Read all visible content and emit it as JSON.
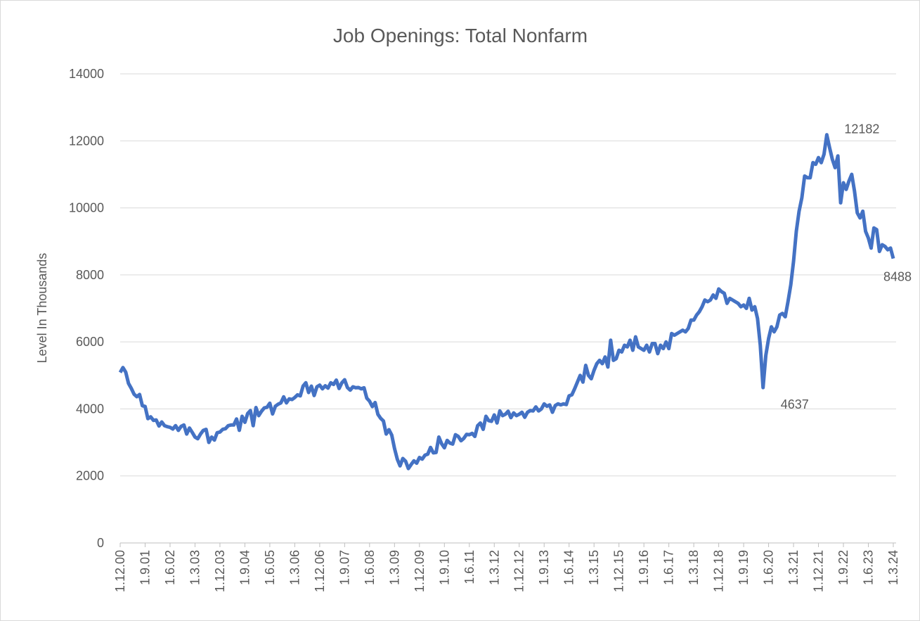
{
  "chart_data": {
    "type": "line",
    "title": "Job Openings: Total Nonfarm",
    "y_label": "Level In Thousands",
    "categories": [
      "1.12.00",
      null,
      null,
      null,
      null,
      null,
      null,
      null,
      null,
      "1.9.01",
      null,
      null,
      null,
      null,
      null,
      null,
      null,
      null,
      "1.6.02",
      null,
      null,
      null,
      null,
      null,
      null,
      null,
      null,
      "1.3.03",
      null,
      null,
      null,
      null,
      null,
      null,
      null,
      null,
      "1.12.03",
      null,
      null,
      null,
      null,
      null,
      null,
      null,
      null,
      "1.9.04",
      null,
      null,
      null,
      null,
      null,
      null,
      null,
      null,
      "1.6.05",
      null,
      null,
      null,
      null,
      null,
      null,
      null,
      null,
      "1.3.06",
      null,
      null,
      null,
      null,
      null,
      null,
      null,
      null,
      "1.12.06",
      null,
      null,
      null,
      null,
      null,
      null,
      null,
      null,
      "1.9.07",
      null,
      null,
      null,
      null,
      null,
      null,
      null,
      null,
      "1.6.08",
      null,
      null,
      null,
      null,
      null,
      null,
      null,
      null,
      "1.3.09",
      null,
      null,
      null,
      null,
      null,
      null,
      null,
      null,
      "1.12.09",
      null,
      null,
      null,
      null,
      null,
      null,
      null,
      null,
      "1.9.10",
      null,
      null,
      null,
      null,
      null,
      null,
      null,
      null,
      "1.6.11",
      null,
      null,
      null,
      null,
      null,
      null,
      null,
      null,
      "1.3.12",
      null,
      null,
      null,
      null,
      null,
      null,
      null,
      null,
      "1.12.12",
      null,
      null,
      null,
      null,
      null,
      null,
      null,
      null,
      "1.9.13",
      null,
      null,
      null,
      null,
      null,
      null,
      null,
      null,
      "1.6.14",
      null,
      null,
      null,
      null,
      null,
      null,
      null,
      null,
      "1.3.15",
      null,
      null,
      null,
      null,
      null,
      null,
      null,
      null,
      "1.12.15",
      null,
      null,
      null,
      null,
      null,
      null,
      null,
      null,
      "1.9.16",
      null,
      null,
      null,
      null,
      null,
      null,
      null,
      null,
      "1.6.17",
      null,
      null,
      null,
      null,
      null,
      null,
      null,
      null,
      "1.3.18",
      null,
      null,
      null,
      null,
      null,
      null,
      null,
      null,
      "1.12.18",
      null,
      null,
      null,
      null,
      null,
      null,
      null,
      null,
      "1.9.19",
      null,
      null,
      null,
      null,
      null,
      null,
      null,
      null,
      "1.6.20",
      null,
      null,
      null,
      null,
      null,
      null,
      null,
      null,
      "1.3.21",
      null,
      null,
      null,
      null,
      null,
      null,
      null,
      null,
      "1.12.21",
      null,
      null,
      null,
      null,
      null,
      null,
      null,
      null,
      "1.9.22",
      null,
      null,
      null,
      null,
      null,
      null,
      null,
      null,
      "1.6.23",
      null,
      null,
      null,
      null,
      null,
      null,
      null,
      null,
      "1.3.24"
    ],
    "values": [
      5088,
      5234,
      5097,
      4762,
      4615,
      4440,
      4364,
      4431,
      4095,
      4074,
      3709,
      3763,
      3658,
      3670,
      3490,
      3610,
      3500,
      3470,
      3450,
      3400,
      3500,
      3360,
      3480,
      3520,
      3250,
      3430,
      3300,
      3160,
      3110,
      3250,
      3360,
      3390,
      3000,
      3160,
      3070,
      3290,
      3310,
      3390,
      3410,
      3500,
      3520,
      3520,
      3700,
      3360,
      3780,
      3600,
      3860,
      3950,
      3500,
      4040,
      3800,
      3930,
      4030,
      4050,
      4170,
      3850,
      4080,
      4140,
      4180,
      4360,
      4180,
      4300,
      4280,
      4340,
      4420,
      4390,
      4680,
      4780,
      4490,
      4680,
      4400,
      4660,
      4710,
      4600,
      4690,
      4620,
      4780,
      4730,
      4860,
      4610,
      4780,
      4870,
      4640,
      4560,
      4660,
      4630,
      4640,
      4600,
      4630,
      4320,
      4230,
      4070,
      4190,
      3840,
      3720,
      3640,
      3250,
      3380,
      3220,
      2820,
      2500,
      2300,
      2520,
      2440,
      2220,
      2340,
      2450,
      2380,
      2550,
      2500,
      2620,
      2650,
      2850,
      2690,
      2700,
      3160,
      2960,
      2840,
      3060,
      2980,
      2950,
      3230,
      3180,
      3050,
      3120,
      3240,
      3230,
      3270,
      3180,
      3500,
      3580,
      3390,
      3780,
      3650,
      3630,
      3820,
      3580,
      3940,
      3800,
      3840,
      3930,
      3740,
      3880,
      3800,
      3840,
      3900,
      3750,
      3900,
      3950,
      3940,
      4060,
      3940,
      4000,
      4150,
      4080,
      4120,
      3900,
      4100,
      4150,
      4120,
      4150,
      4130,
      4390,
      4420,
      4600,
      4800,
      5000,
      4800,
      5300,
      5000,
      4900,
      5150,
      5350,
      5450,
      5350,
      5550,
      5250,
      6050,
      5450,
      5500,
      5750,
      5700,
      5900,
      5850,
      6050,
      5750,
      6150,
      5850,
      5800,
      5750,
      5900,
      5700,
      5950,
      5950,
      5650,
      5900,
      5800,
      6000,
      5800,
      6250,
      6200,
      6250,
      6300,
      6350,
      6300,
      6400,
      6650,
      6650,
      6800,
      6900,
      7050,
      7250,
      7200,
      7250,
      7400,
      7300,
      7580,
      7500,
      7450,
      7150,
      7300,
      7250,
      7200,
      7150,
      7050,
      7100,
      7000,
      7300,
      6950,
      7050,
      6700,
      5900,
      4637,
      5600,
      6100,
      6450,
      6300,
      6450,
      6800,
      6850,
      6750,
      7200,
      7700,
      8400,
      9300,
      9900,
      10300,
      10950,
      10900,
      10900,
      11350,
      11300,
      11500,
      11350,
      11600,
      12182,
      11800,
      11450,
      11200,
      11550,
      10150,
      10750,
      10550,
      10800,
      11000,
      10500,
      9850,
      9700,
      9900,
      9300,
      9100,
      8800,
      9400,
      9350,
      8700,
      8900,
      8850,
      8750,
      8800,
      8488
    ],
    "value_labels": [
      null,
      null,
      null,
      null,
      null,
      null,
      null,
      null,
      null,
      null,
      null,
      null,
      null,
      null,
      null,
      null,
      null,
      null,
      null,
      null,
      null,
      null,
      null,
      null,
      null,
      null,
      null,
      null,
      null,
      null,
      null,
      null,
      null,
      null,
      null,
      null,
      null,
      null,
      null,
      null,
      null,
      null,
      null,
      null,
      null,
      null,
      null,
      null,
      null,
      null,
      null,
      null,
      null,
      null,
      null,
      null,
      null,
      null,
      null,
      null,
      null,
      null,
      null,
      null,
      null,
      null,
      null,
      null,
      null,
      null,
      null,
      null,
      null,
      null,
      null,
      null,
      null,
      null,
      null,
      null,
      null,
      null,
      null,
      null,
      null,
      null,
      null,
      null,
      null,
      null,
      null,
      null,
      null,
      null,
      null,
      null,
      null,
      null,
      null,
      null,
      null,
      null,
      null,
      null,
      null,
      null,
      null,
      null,
      null,
      null,
      null,
      null,
      null,
      null,
      null,
      null,
      null,
      null,
      null,
      null,
      null,
      null,
      null,
      null,
      null,
      null,
      null,
      null,
      null,
      null,
      null,
      null,
      null,
      null,
      null,
      null,
      null,
      null,
      null,
      null,
      null,
      null,
      null,
      null,
      null,
      null,
      null,
      null,
      null,
      null,
      null,
      null,
      null,
      null,
      null,
      null,
      null,
      null,
      null,
      null,
      null,
      null,
      null,
      null,
      null,
      null,
      null,
      null,
      null,
      null,
      null,
      null,
      null,
      null,
      null,
      null,
      null,
      null,
      null,
      null,
      null,
      null,
      null,
      null,
      null,
      null,
      null,
      null,
      null,
      null,
      null,
      null,
      null,
      null,
      null,
      null,
      null,
      null,
      null,
      null,
      null,
      null,
      null,
      null,
      null,
      null,
      null,
      null,
      null,
      null,
      null,
      null,
      null,
      null,
      null,
      null,
      null,
      null,
      null,
      null,
      null,
      null,
      null,
      null,
      null,
      null,
      null,
      null,
      null,
      null,
      null,
      null,
      "4637",
      null,
      null,
      null,
      null,
      null,
      null,
      null,
      null,
      null,
      null,
      null,
      null,
      null,
      null,
      null,
      null,
      null,
      null,
      null,
      null,
      null,
      null,
      "12182",
      null,
      null,
      null,
      null,
      null,
      null,
      null,
      null,
      null,
      null,
      null,
      null,
      null,
      null,
      null,
      null,
      null,
      null,
      null,
      null,
      null,
      null,
      null,
      "8488"
    ],
    "color": "#4472c4",
    "ylim": [
      0,
      14000
    ],
    "yticks": [
      0,
      2000,
      4000,
      6000,
      8000,
      10000,
      12000,
      14000
    ],
    "grid": true
  }
}
